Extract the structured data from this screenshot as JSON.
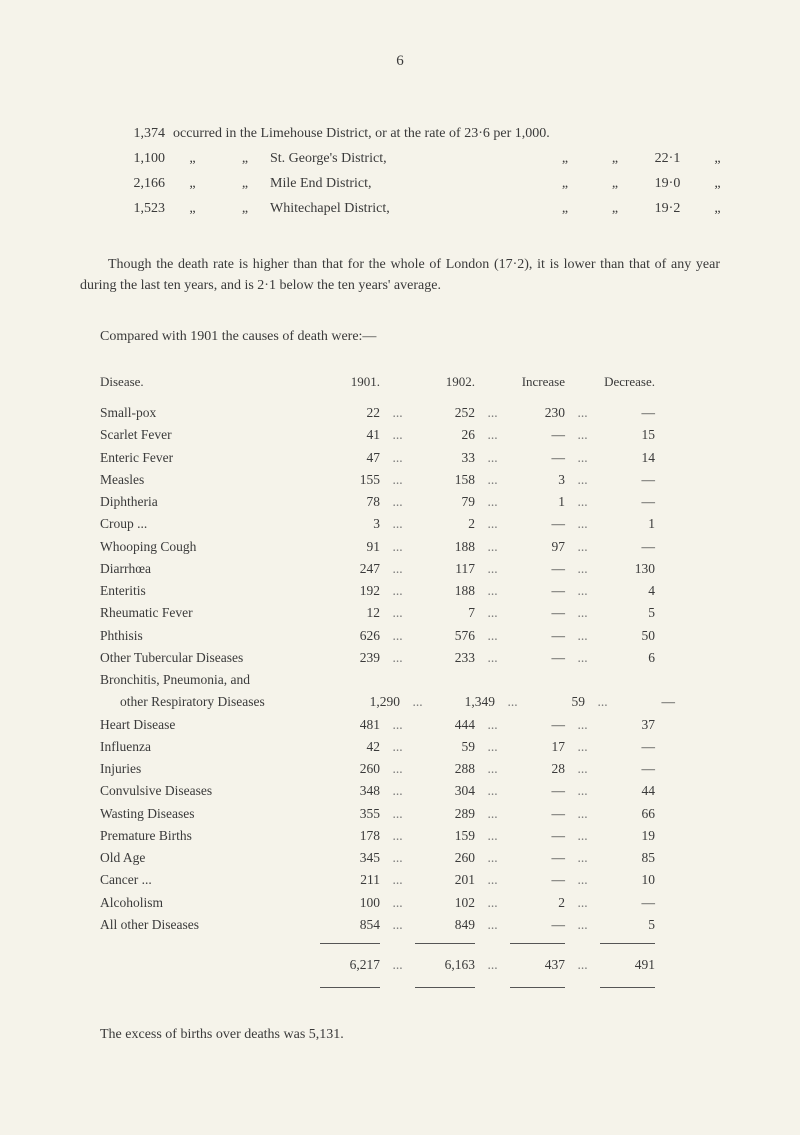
{
  "page_number": "6",
  "district_rates": {
    "lines": [
      {
        "count": "1,374",
        "pre": "occurred in the",
        "name": "Limehouse District,",
        "post": "or at the rate of",
        "rate": "23·6",
        "tail": "per 1,000."
      },
      {
        "count": "1,100",
        "pre": "„",
        "prep2": "„",
        "name": "St. George's District,",
        "sep": "„",
        "sep2": "„",
        "rate": "22·1",
        "tail": "„"
      },
      {
        "count": "2,166",
        "pre": "„",
        "prep2": "„",
        "name": "Mile End District,",
        "sep": "„",
        "sep2": "„",
        "rate": "19·0",
        "tail": "„"
      },
      {
        "count": "1,523",
        "pre": "„",
        "prep2": "„",
        "name": "Whitechapel District,",
        "sep": "„",
        "sep2": "„",
        "rate": "19·2",
        "tail": "„"
      }
    ]
  },
  "paragraph": "Though the death rate is higher than that for the whole of London (17·2), it is lower than that of any year during the last ten years, and is 2·1 below the ten years' average.",
  "compared_line": "Compared with 1901 the causes of death were:—",
  "table": {
    "headers": {
      "disease": "Disease.",
      "y1": "1901.",
      "y2": "1902.",
      "inc": "Increase",
      "dec": "Decrease."
    },
    "rows": [
      {
        "disease": "Small-pox",
        "y1": "22",
        "y2": "252",
        "inc": "230",
        "dec": "—"
      },
      {
        "disease": "Scarlet Fever",
        "y1": "41",
        "y2": "26",
        "inc": "—",
        "dec": "15"
      },
      {
        "disease": "Enteric Fever",
        "y1": "47",
        "y2": "33",
        "inc": "—",
        "dec": "14"
      },
      {
        "disease": "Measles",
        "y1": "155",
        "y2": "158",
        "inc": "3",
        "dec": "—"
      },
      {
        "disease": "Diphtheria",
        "y1": "78",
        "y2": "79",
        "inc": "1",
        "dec": "—"
      },
      {
        "disease": "Croup   ...",
        "y1": "3",
        "y2": "2",
        "inc": "—",
        "dec": "1"
      },
      {
        "disease": "Whooping Cough",
        "y1": "91",
        "y2": "188",
        "inc": "97",
        "dec": "—"
      },
      {
        "disease": "Diarrhœa",
        "y1": "247",
        "y2": "117",
        "inc": "—",
        "dec": "130"
      },
      {
        "disease": "Enteritis",
        "y1": "192",
        "y2": "188",
        "inc": "—",
        "dec": "4"
      },
      {
        "disease": "Rheumatic Fever",
        "y1": "12",
        "y2": "7",
        "inc": "—",
        "dec": "5"
      },
      {
        "disease": "Phthisis",
        "y1": "626",
        "y2": "576",
        "inc": "—",
        "dec": "50"
      },
      {
        "disease": "Other Tubercular Diseases",
        "y1": "239",
        "y2": "233",
        "inc": "—",
        "dec": "6"
      },
      {
        "disease": "Bronchitis, Pneumonia, and",
        "y1": "",
        "y2": "",
        "inc": "",
        "dec": ""
      },
      {
        "disease": "  other Respiratory Diseases",
        "indent": true,
        "y1": "1,290",
        "y2": "1,349",
        "inc": "59",
        "dec": "—"
      },
      {
        "disease": "Heart Disease",
        "y1": "481",
        "y2": "444",
        "inc": "—",
        "dec": "37"
      },
      {
        "disease": "Influenza",
        "y1": "42",
        "y2": "59",
        "inc": "17",
        "dec": "—"
      },
      {
        "disease": "Injuries",
        "y1": "260",
        "y2": "288",
        "inc": "28",
        "dec": "—"
      },
      {
        "disease": "Convulsive Diseases",
        "y1": "348",
        "y2": "304",
        "inc": "—",
        "dec": "44"
      },
      {
        "disease": "Wasting Diseases",
        "y1": "355",
        "y2": "289",
        "inc": "—",
        "dec": "66"
      },
      {
        "disease": "Premature Births",
        "y1": "178",
        "y2": "159",
        "inc": "—",
        "dec": "19"
      },
      {
        "disease": "Old Age",
        "y1": "345",
        "y2": "260",
        "inc": "—",
        "dec": "85"
      },
      {
        "disease": "Cancer  ...",
        "y1": "211",
        "y2": "201",
        "inc": "—",
        "dec": "10"
      },
      {
        "disease": "Alcoholism",
        "y1": "100",
        "y2": "102",
        "inc": "2",
        "dec": "—"
      },
      {
        "disease": "All other Diseases",
        "y1": "854",
        "y2": "849",
        "inc": "—",
        "dec": "5"
      }
    ],
    "totals": {
      "y1": "6,217",
      "y2": "6,163",
      "inc": "437",
      "dec": "491"
    }
  },
  "excess_line": "The excess of births over deaths was 5,131."
}
